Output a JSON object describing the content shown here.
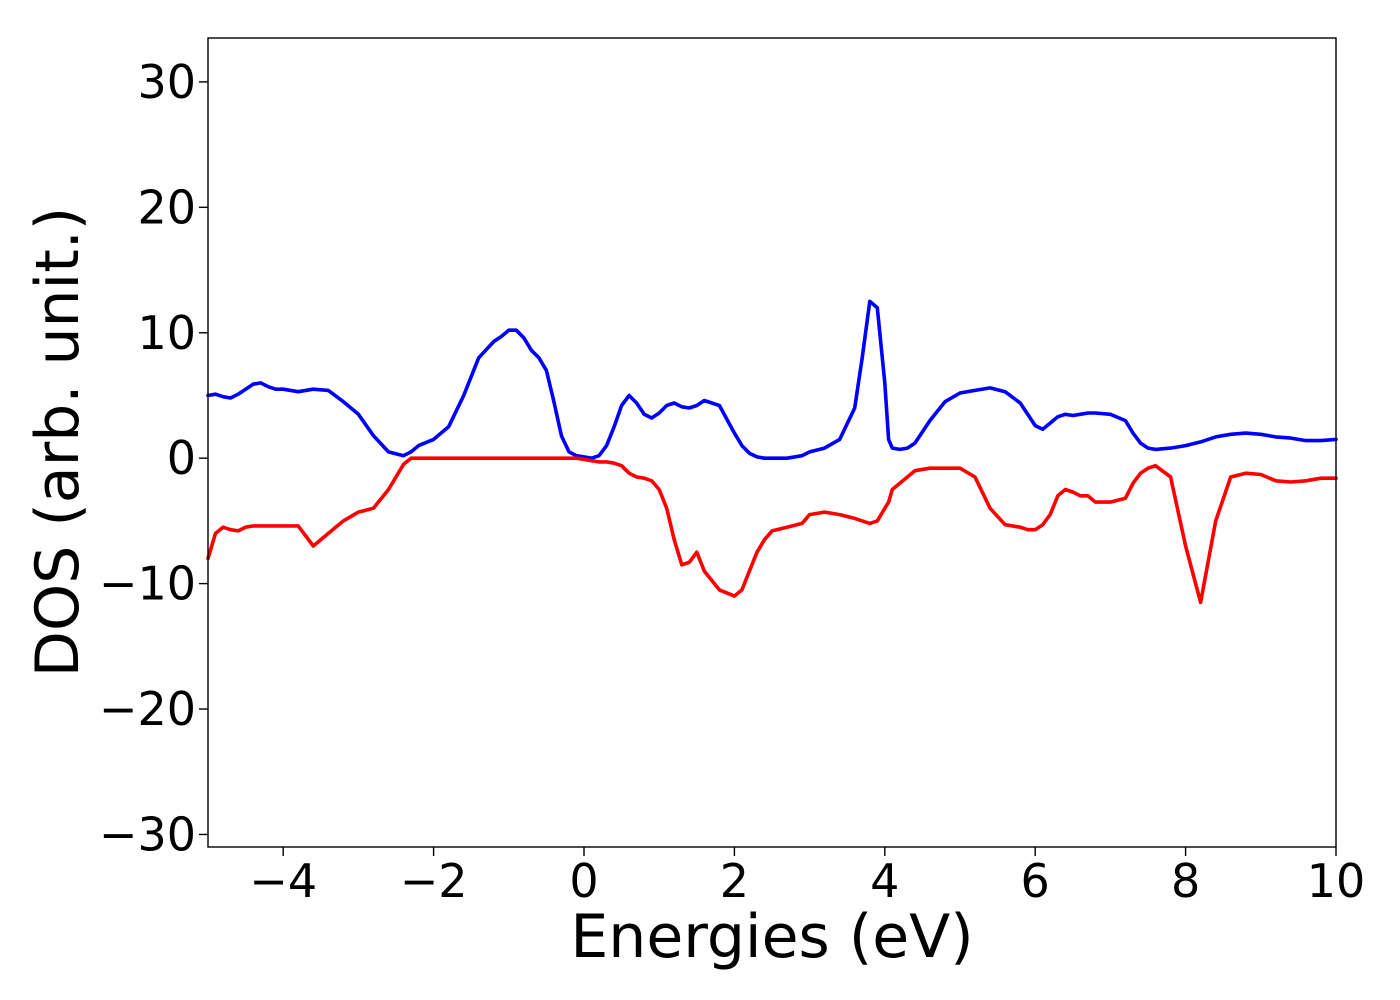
{
  "chart_data": {
    "type": "line",
    "title": "",
    "xlabel": "Energies (eV)",
    "ylabel": "DOS (arb. unit.)",
    "xlim": [
      -5,
      10
    ],
    "ylim": [
      -31,
      33.5
    ],
    "xticks": [
      -4,
      -2,
      0,
      2,
      4,
      6,
      8,
      10
    ],
    "xtick_labels": [
      "−4",
      "−2",
      "0",
      "2",
      "4",
      "6",
      "8",
      "10"
    ],
    "yticks": [
      -30,
      -20,
      -10,
      0,
      10,
      20,
      30
    ],
    "ytick_labels": [
      "−30",
      "−20",
      "−10",
      "0",
      "10",
      "20",
      "30"
    ],
    "grid": false,
    "legend": "none",
    "series": [
      {
        "color": "#0000ff",
        "x": [
          -5.0,
          -4.9,
          -4.8,
          -4.7,
          -4.6,
          -4.5,
          -4.4,
          -4.3,
          -4.2,
          -4.1,
          -4.0,
          -3.8,
          -3.6,
          -3.4,
          -3.2,
          -3.0,
          -2.8,
          -2.6,
          -2.4,
          -2.3,
          -2.2,
          -2.0,
          -1.8,
          -1.6,
          -1.4,
          -1.2,
          -1.1,
          -1.0,
          -0.9,
          -0.8,
          -0.7,
          -0.6,
          -0.5,
          -0.4,
          -0.3,
          -0.2,
          -0.1,
          0.0,
          0.1,
          0.2,
          0.3,
          0.4,
          0.5,
          0.6,
          0.7,
          0.8,
          0.9,
          1.0,
          1.1,
          1.2,
          1.3,
          1.4,
          1.5,
          1.6,
          1.8,
          2.0,
          2.1,
          2.2,
          2.3,
          2.4,
          2.5,
          2.7,
          2.9,
          3.0,
          3.2,
          3.4,
          3.6,
          3.7,
          3.8,
          3.9,
          4.0,
          4.05,
          4.1,
          4.2,
          4.3,
          4.4,
          4.6,
          4.8,
          5.0,
          5.2,
          5.4,
          5.6,
          5.8,
          5.9,
          6.0,
          6.1,
          6.2,
          6.3,
          6.4,
          6.5,
          6.6,
          6.7,
          6.8,
          7.0,
          7.2,
          7.3,
          7.4,
          7.5,
          7.6,
          7.8,
          8.0,
          8.2,
          8.4,
          8.6,
          8.8,
          9.0,
          9.2,
          9.4,
          9.6,
          9.8,
          10.0
        ],
        "y": [
          5.0,
          5.1,
          4.9,
          4.8,
          5.1,
          5.5,
          5.9,
          6.0,
          5.7,
          5.5,
          5.5,
          5.3,
          5.5,
          5.4,
          4.5,
          3.5,
          1.8,
          0.5,
          0.2,
          0.5,
          1.0,
          1.5,
          2.5,
          5.0,
          8.0,
          9.3,
          9.7,
          10.2,
          10.2,
          9.6,
          8.6,
          8.0,
          7.0,
          4.5,
          1.8,
          0.5,
          0.2,
          0.1,
          0.0,
          0.2,
          1.0,
          2.5,
          4.2,
          5.0,
          4.4,
          3.5,
          3.2,
          3.6,
          4.2,
          4.4,
          4.1,
          4.0,
          4.2,
          4.6,
          4.2,
          2.0,
          1.0,
          0.4,
          0.1,
          0.0,
          0.0,
          0.0,
          0.2,
          0.5,
          0.8,
          1.5,
          4.0,
          8.0,
          12.5,
          12.0,
          6.0,
          1.5,
          0.8,
          0.7,
          0.8,
          1.2,
          3.0,
          4.5,
          5.2,
          5.4,
          5.6,
          5.3,
          4.4,
          3.5,
          2.6,
          2.3,
          2.8,
          3.3,
          3.5,
          3.4,
          3.5,
          3.6,
          3.6,
          3.5,
          3.0,
          2.0,
          1.2,
          0.8,
          0.7,
          0.8,
          1.0,
          1.3,
          1.7,
          1.9,
          2.0,
          1.9,
          1.7,
          1.6,
          1.4,
          1.4,
          1.5
        ]
      },
      {
        "color": "#ff0000",
        "x": [
          -5.0,
          -4.9,
          -4.8,
          -4.7,
          -4.6,
          -4.5,
          -4.4,
          -4.3,
          -4.2,
          -4.1,
          -4.0,
          -3.8,
          -3.6,
          -3.4,
          -3.2,
          -3.0,
          -2.8,
          -2.6,
          -2.4,
          -2.3,
          -2.2,
          -2.0,
          -1.8,
          -1.6,
          -1.4,
          -1.2,
          -1.1,
          -1.0,
          -0.9,
          -0.8,
          -0.7,
          -0.6,
          -0.5,
          -0.4,
          -0.3,
          -0.2,
          -0.1,
          0.0,
          0.1,
          0.2,
          0.3,
          0.4,
          0.5,
          0.6,
          0.7,
          0.8,
          0.9,
          1.0,
          1.1,
          1.2,
          1.3,
          1.4,
          1.5,
          1.6,
          1.8,
          2.0,
          2.1,
          2.2,
          2.3,
          2.4,
          2.5,
          2.7,
          2.9,
          3.0,
          3.2,
          3.4,
          3.6,
          3.7,
          3.8,
          3.9,
          4.0,
          4.05,
          4.1,
          4.2,
          4.3,
          4.4,
          4.6,
          4.8,
          5.0,
          5.2,
          5.4,
          5.6,
          5.8,
          5.9,
          6.0,
          6.1,
          6.2,
          6.3,
          6.4,
          6.5,
          6.6,
          6.7,
          6.8,
          7.0,
          7.2,
          7.3,
          7.4,
          7.5,
          7.6,
          7.8,
          8.0,
          8.2,
          8.4,
          8.6,
          8.8,
          9.0,
          9.2,
          9.4,
          9.6,
          9.8,
          10.0
        ],
        "y": [
          -8.0,
          -6.0,
          -5.5,
          -5.7,
          -5.8,
          -5.5,
          -5.4,
          -5.4,
          -5.4,
          -5.4,
          -5.4,
          -5.4,
          -7.0,
          -6.0,
          -5.0,
          -4.3,
          -4.0,
          -2.5,
          -0.5,
          0.0,
          0.0,
          0.0,
          0.0,
          0.0,
          0.0,
          0.0,
          0.0,
          0.0,
          0.0,
          0.0,
          0.0,
          0.0,
          0.0,
          0.0,
          0.0,
          0.0,
          0.0,
          -0.1,
          -0.2,
          -0.3,
          -0.3,
          -0.4,
          -0.6,
          -1.2,
          -1.5,
          -1.6,
          -1.8,
          -2.5,
          -4.0,
          -6.5,
          -8.5,
          -8.3,
          -7.5,
          -9.0,
          -10.5,
          -11.0,
          -10.5,
          -9.0,
          -7.5,
          -6.5,
          -5.8,
          -5.5,
          -5.2,
          -4.5,
          -4.3,
          -4.5,
          -4.8,
          -5.0,
          -5.2,
          -5.0,
          -4.0,
          -3.5,
          -2.5,
          -2.0,
          -1.5,
          -1.0,
          -0.8,
          -0.8,
          -0.8,
          -1.5,
          -4.0,
          -5.3,
          -5.5,
          -5.7,
          -5.7,
          -5.3,
          -4.5,
          -3.0,
          -2.5,
          -2.7,
          -3.0,
          -3.0,
          -3.5,
          -3.5,
          -3.2,
          -2.0,
          -1.2,
          -0.8,
          -0.6,
          -1.5,
          -7.0,
          -11.5,
          -5.0,
          -1.5,
          -1.2,
          -1.3,
          -1.8,
          -1.9,
          -1.8,
          -1.6,
          -1.6
        ]
      }
    ]
  }
}
